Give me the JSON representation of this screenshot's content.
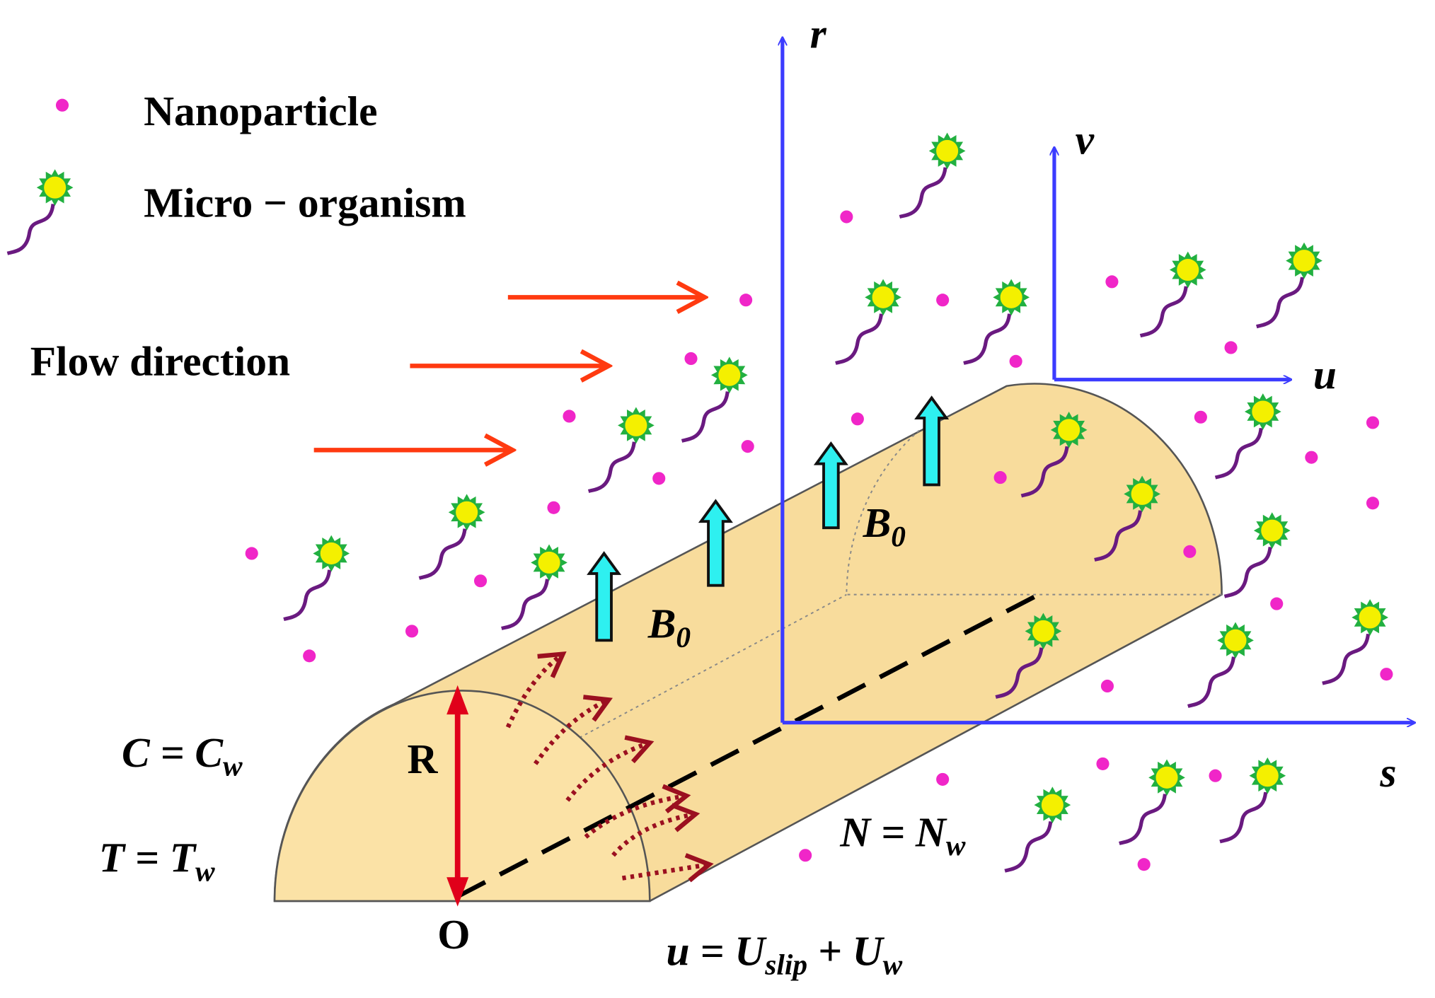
{
  "legend": {
    "nanoparticle": "Nanoparticle",
    "microorganism": "Micro − organism"
  },
  "flow_label": "Flow direction",
  "axes": {
    "r": "r",
    "v": "v",
    "u": "u",
    "s": "s"
  },
  "field_labels": [
    [
      "B",
      "0"
    ],
    [
      "B",
      "0"
    ]
  ],
  "radius_label": "R",
  "origin_label": "O",
  "conditions": {
    "concentration": [
      "C = C",
      "w"
    ],
    "temperature": [
      "T = T",
      "w"
    ],
    "microorganism": [
      "N = N",
      "w"
    ],
    "velocity": [
      "u = U",
      "slip",
      " + U",
      "w"
    ]
  }
}
